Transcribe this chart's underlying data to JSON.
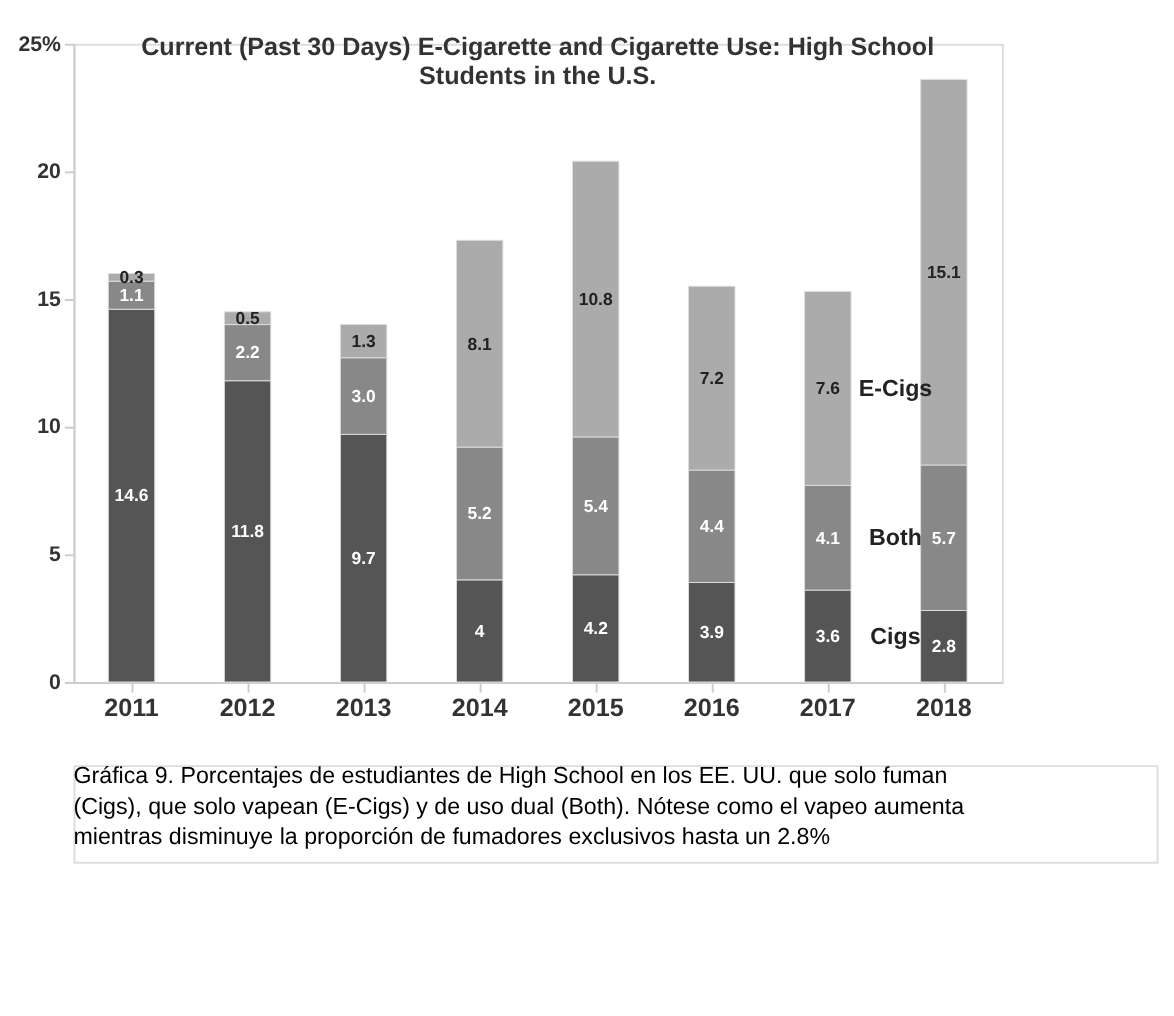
{
  "chart_data": {
    "type": "bar",
    "stacked": true,
    "title": "Current (Past 30 Days) E-Cigarette and Cigarette Use: High School Students in the U.S.",
    "categories": [
      "2011",
      "2012",
      "2013",
      "2014",
      "2015",
      "2016",
      "2017",
      "2018"
    ],
    "series": [
      {
        "name": "Cigs",
        "color": "#555555",
        "values": [
          14.6,
          11.8,
          9.7,
          4,
          4.2,
          3.9,
          3.6,
          2.8
        ]
      },
      {
        "name": "Both",
        "color": "#888888",
        "values": [
          1.1,
          2.2,
          3.0,
          5.2,
          5.4,
          4.4,
          4.1,
          5.7
        ]
      },
      {
        "name": "E-Cigs",
        "color": "#ababab",
        "values": [
          0.3,
          0.5,
          1.3,
          8.1,
          10.8,
          7.2,
          7.6,
          15.1
        ]
      }
    ],
    "value_labels": [
      [
        "14.6",
        "11.8",
        "9.7",
        "4",
        "4.2",
        "3.9",
        "3.6",
        "2.8"
      ],
      [
        "1.1",
        "2.2",
        "3.0",
        "5.2",
        "5.4",
        "4.4",
        "4.1",
        "5.7"
      ],
      [
        "0.3",
        "0.5",
        "1.3",
        "8.1",
        "10.8",
        "7.2",
        "7.6",
        "15.1"
      ]
    ],
    "ylim": [
      0,
      25
    ],
    "yticks": [
      0,
      5,
      10,
      15,
      20,
      {
        "value": 25,
        "label": "25%"
      }
    ],
    "grid": false,
    "legend": false,
    "annotations": [
      "Gráfica 9. Porcentajes de estudiantes de High School en los EE. UU. que solo fuman (Cigs), que solo vapean (E-Cigs) y de uso dual (Both). Nótese como el vapeo aumenta mientras disminuye la proporción de fumadores exclusivos hasta un 2.8%"
    ]
  }
}
